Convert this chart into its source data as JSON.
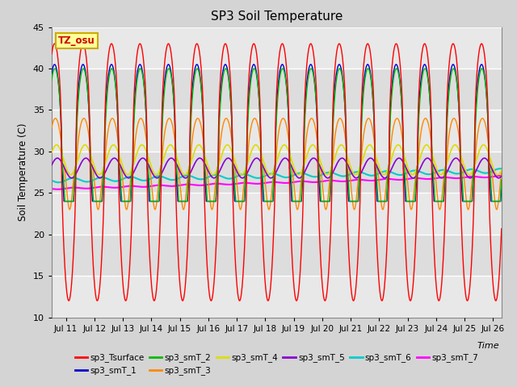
{
  "title": "SP3 Soil Temperature",
  "xlabel": "Time",
  "ylabel": "Soil Temperature (C)",
  "ylim": [
    10,
    45
  ],
  "xlim_days": [
    10.5,
    26.3
  ],
  "fig_bg_color": "#d4d4d4",
  "plot_bg_color": "#e8e8e8",
  "annotation_text": "TZ_osu",
  "annotation_bg": "#ffff99",
  "annotation_border": "#ccaa00",
  "series_colors": {
    "sp3_Tsurface": "#ff0000",
    "sp3_smT_1": "#0000cc",
    "sp3_smT_2": "#00bb00",
    "sp3_smT_3": "#ff8800",
    "sp3_smT_4": "#dddd00",
    "sp3_smT_5": "#8800cc",
    "sp3_smT_6": "#00cccc",
    "sp3_smT_7": "#ff00ff"
  },
  "tick_labels": [
    "Jul 11",
    "Jul 12",
    "Jul 13",
    "Jul 14",
    "Jul 15",
    "Jul 16",
    "Jul 17",
    "Jul 18",
    "Jul 19",
    "Jul 20",
    "Jul 21",
    "Jul 22",
    "Jul 23",
    "Jul 24",
    "Jul 25",
    "Jul 26"
  ],
  "tick_positions": [
    11,
    12,
    13,
    14,
    15,
    16,
    17,
    18,
    19,
    20,
    21,
    22,
    23,
    24,
    25,
    26
  ],
  "yticks": [
    10,
    15,
    20,
    25,
    30,
    35,
    40,
    45
  ]
}
